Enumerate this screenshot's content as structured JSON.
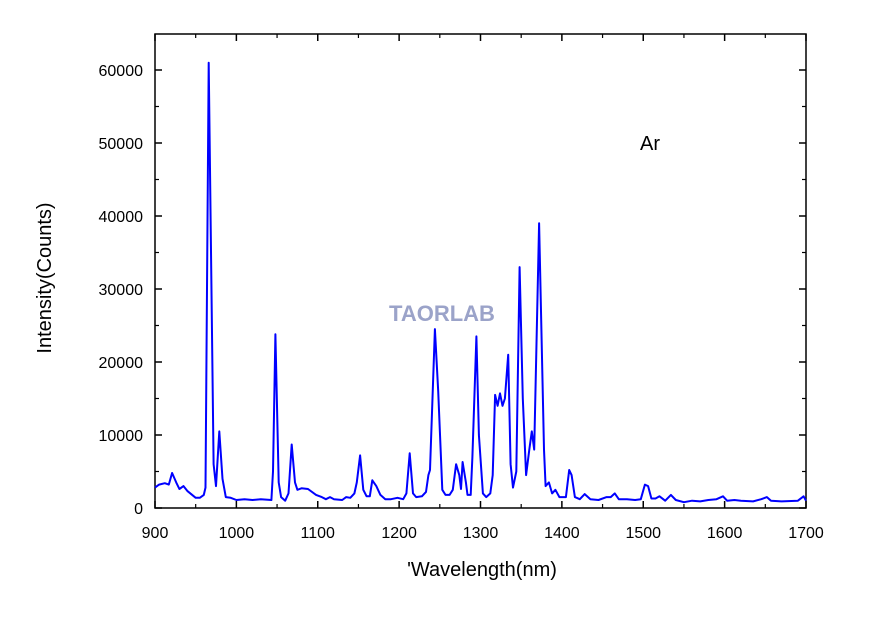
{
  "chart_data": {
    "type": "line",
    "title": "",
    "xlabel": "'Wavelength(nm)",
    "ylabel": "Intensity(Counts)",
    "xlim": [
      900,
      1700
    ],
    "ylim": [
      0,
      60000
    ],
    "x_ticks": [
      "900",
      "1000",
      "1100",
      "1200",
      "1300",
      "1400",
      "1500",
      "1600",
      "1700"
    ],
    "y_ticks": [
      "0",
      "10000",
      "20000",
      "30000",
      "40000",
      "50000",
      "60000"
    ],
    "annotation": "Ar",
    "watermark": "TAORLAB",
    "grid": false,
    "line_color": "#0000ff",
    "series": [
      {
        "x": [
          900,
          905,
          912,
          917,
          921,
          926,
          930,
          935,
          940,
          950,
          955,
          960,
          962,
          966,
          972,
          975,
          979,
          983,
          987,
          993,
          1000,
          1010,
          1020,
          1030,
          1043,
          1045,
          1048,
          1052,
          1055,
          1060,
          1064,
          1068,
          1072,
          1075,
          1080,
          1088,
          1098,
          1105,
          1110,
          1115,
          1120,
          1130,
          1135,
          1140,
          1145,
          1148,
          1152,
          1156,
          1160,
          1164,
          1167,
          1172,
          1177,
          1183,
          1190,
          1198,
          1205,
          1209,
          1213,
          1217,
          1221,
          1228,
          1233,
          1236,
          1238,
          1244,
          1248,
          1253,
          1257,
          1262,
          1266,
          1270,
          1274,
          1276,
          1278,
          1282,
          1284,
          1288,
          1290,
          1295,
          1298,
          1303,
          1307,
          1312,
          1315,
          1318,
          1321,
          1324,
          1327,
          1330,
          1334,
          1337,
          1340,
          1344,
          1348,
          1352,
          1356,
          1360,
          1363,
          1366,
          1372,
          1378,
          1380,
          1384,
          1388,
          1392,
          1397,
          1405,
          1409,
          1412,
          1416,
          1422,
          1428,
          1435,
          1445,
          1455,
          1460,
          1465,
          1470,
          1480,
          1490,
          1497,
          1502,
          1506,
          1510,
          1515,
          1520,
          1527,
          1534,
          1540,
          1550,
          1560,
          1570,
          1580,
          1590,
          1598,
          1603,
          1612,
          1620,
          1635,
          1645,
          1652,
          1657,
          1670,
          1690,
          1697,
          1700
        ],
        "y": [
          2800,
          3200,
          3400,
          3200,
          4800,
          3500,
          2600,
          3000,
          2300,
          1400,
          1400,
          1800,
          2800,
          61000,
          6000,
          3000,
          10500,
          4000,
          1500,
          1400,
          1100,
          1200,
          1100,
          1200,
          1100,
          5000,
          23800,
          3500,
          1500,
          1000,
          2000,
          8700,
          3500,
          2500,
          2700,
          2600,
          1800,
          1500,
          1200,
          1500,
          1200,
          1100,
          1500,
          1400,
          2000,
          3500,
          7200,
          2500,
          1600,
          1600,
          3800,
          3000,
          1800,
          1200,
          1200,
          1400,
          1200,
          2000,
          7500,
          2000,
          1500,
          1600,
          2200,
          4500,
          5200,
          24500,
          16000,
          2500,
          1800,
          1800,
          2500,
          6000,
          4500,
          2600,
          6300,
          3500,
          1800,
          1800,
          7000,
          23500,
          10000,
          2000,
          1500,
          2000,
          4500,
          15500,
          14000,
          15700,
          14000,
          15000,
          21000,
          6000,
          2800,
          5000,
          33000,
          15000,
          4500,
          8000,
          10500,
          8000,
          39000,
          8000,
          3000,
          3500,
          2000,
          2500,
          1500,
          1500,
          5200,
          4500,
          1500,
          1200,
          1900,
          1200,
          1100,
          1500,
          1500,
          2000,
          1200,
          1200,
          1100,
          1200,
          3200,
          3000,
          1300,
          1300,
          1600,
          1000,
          1800,
          1100,
          800,
          1000,
          900,
          1100,
          1200,
          1600,
          1000,
          1100,
          1000,
          900,
          1200,
          1500,
          1000,
          900,
          1000,
          1600,
          1000
        ]
      }
    ]
  }
}
